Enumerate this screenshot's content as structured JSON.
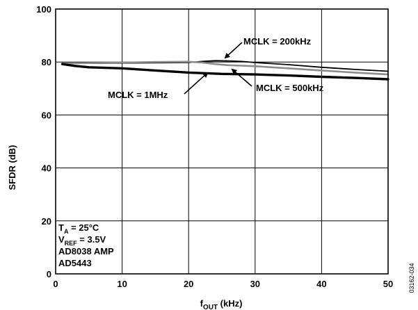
{
  "chart_data": {
    "type": "line",
    "title": "",
    "xlabel": {
      "main": "f",
      "sub": "OUT",
      "suffix": " (kHz)"
    },
    "ylabel": "SFDR (dB)",
    "xlim": [
      0,
      50
    ],
    "ylim": [
      0,
      100
    ],
    "xticks": [
      0,
      10,
      20,
      30,
      40,
      50
    ],
    "yticks": [
      0,
      20,
      40,
      60,
      80,
      100
    ],
    "grid": true,
    "series": [
      {
        "name": "MCLK = 200kHz",
        "color": "#000000",
        "width": "thin",
        "x": [
          1,
          5,
          10,
          15,
          20,
          22,
          24,
          26,
          28,
          30,
          35,
          40,
          45,
          50
        ],
        "y": [
          79.5,
          79.5,
          79.6,
          79.7,
          79.8,
          80.2,
          80.5,
          80.4,
          80.2,
          79.8,
          79.0,
          78.0,
          77.2,
          76.5
        ]
      },
      {
        "name": "MCLK = 500kHz",
        "color": "#8c8c8c",
        "width": "medium",
        "x": [
          1,
          5,
          10,
          15,
          20,
          22,
          24,
          26,
          28,
          30,
          35,
          40,
          45,
          50
        ],
        "y": [
          79.5,
          79.6,
          79.8,
          80.0,
          80.1,
          79.8,
          79.2,
          78.8,
          78.6,
          78.4,
          77.6,
          76.8,
          76.0,
          75.3
        ]
      },
      {
        "name": "MCLK = 1MHz",
        "color": "#000000",
        "width": "thick",
        "x": [
          1,
          3,
          5,
          10,
          15,
          20,
          25,
          30,
          35,
          40,
          45,
          50
        ],
        "y": [
          79.2,
          78.5,
          78.0,
          77.6,
          76.8,
          76.0,
          75.5,
          75.3,
          74.9,
          74.4,
          74.0,
          73.5
        ]
      }
    ],
    "annotations": [
      {
        "text": "MCLK = 200kHz",
        "arrow_to": [
          26,
          80.8
        ]
      },
      {
        "text": "MCLK = 500kHz",
        "arrow_to": [
          28,
          79.2
        ]
      },
      {
        "text": "MCLK = 1MHz",
        "arrow_to": [
          23,
          78.8
        ]
      }
    ],
    "conditions": [
      {
        "main": "T",
        "sub": "A",
        "rest": " = 25°C"
      },
      {
        "main": "V",
        "sub": "REF",
        "rest": " = 3.5V"
      },
      {
        "main": "AD8038 AMP",
        "sub": "",
        "rest": ""
      },
      {
        "main": "AD5443",
        "sub": "",
        "rest": ""
      }
    ],
    "figure_id": "03162-034"
  }
}
